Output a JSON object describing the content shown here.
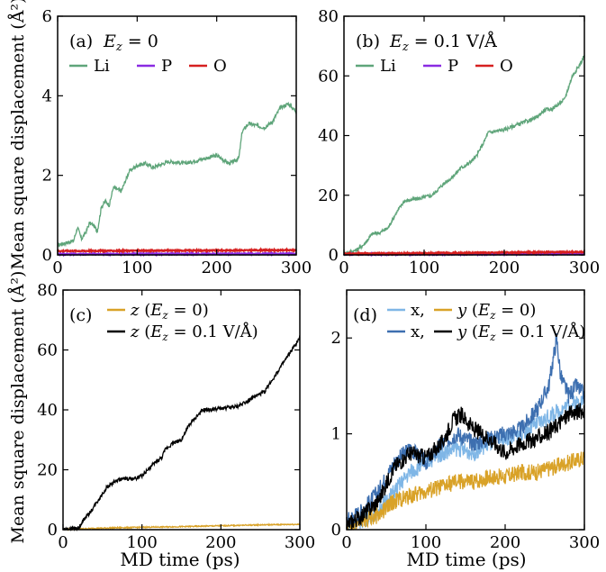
{
  "figure": {
    "ylabel_top": "Mean square displacement (Å²)",
    "ylabel_bottom": "Mean square displacement (Å²)",
    "xlabel_left": "MD time (ps)",
    "xlabel_right": "MD time (ps)"
  },
  "colors": {
    "Li": "#5fa57a",
    "P": "#8a2be2",
    "O": "#d62020",
    "z0": "#d9a228",
    "zE": "#000000",
    "x0": "#7fb6e6",
    "xE": "#3d6fb0"
  },
  "chart_data": [
    {
      "panel": "a",
      "type": "line",
      "annotation": "(a)",
      "condition": "E_z = 0",
      "xlim": [
        0,
        300
      ],
      "ylim": [
        0,
        6
      ],
      "xticks": [
        "0",
        "100",
        "200",
        "300"
      ],
      "yticks": [
        "0",
        "2",
        "4",
        "6"
      ],
      "legend": "top-left",
      "series": [
        {
          "name": "Li",
          "color_key": "Li",
          "x": [
            0,
            10,
            20,
            25,
            30,
            35,
            40,
            45,
            50,
            55,
            60,
            65,
            70,
            80,
            90,
            100,
            110,
            120,
            140,
            160,
            180,
            200,
            215,
            222,
            228,
            232,
            240,
            260,
            270,
            280,
            290,
            300
          ],
          "y": [
            0.25,
            0.3,
            0.35,
            0.7,
            0.4,
            0.55,
            0.8,
            0.75,
            0.6,
            1.2,
            1.35,
            1.25,
            1.7,
            1.6,
            2.1,
            2.25,
            2.3,
            2.2,
            2.35,
            2.3,
            2.4,
            2.5,
            2.3,
            2.35,
            2.45,
            3.1,
            3.3,
            3.2,
            3.35,
            3.7,
            3.8,
            3.6
          ]
        },
        {
          "name": "P",
          "color_key": "P",
          "x": [
            0,
            300
          ],
          "y": [
            0.02,
            0.03
          ]
        },
        {
          "name": "O",
          "color_key": "O",
          "x": [
            0,
            300
          ],
          "y": [
            0.1,
            0.12
          ]
        }
      ]
    },
    {
      "panel": "b",
      "type": "line",
      "annotation": "(b)",
      "condition": "E_z = 0.1 V/Å",
      "xlim": [
        0,
        300
      ],
      "ylim": [
        0,
        80
      ],
      "xticks": [
        "0",
        "100",
        "200",
        "300"
      ],
      "yticks": [
        "0",
        "20",
        "40",
        "60",
        "80"
      ],
      "legend": "top-left",
      "series": [
        {
          "name": "Li",
          "color_key": "Li",
          "x": [
            0,
            15,
            25,
            35,
            45,
            55,
            65,
            75,
            85,
            95,
            110,
            125,
            135,
            145,
            155,
            165,
            175,
            180,
            200,
            220,
            240,
            250,
            260,
            275,
            285,
            295,
            300
          ],
          "y": [
            0.5,
            1.5,
            3.5,
            7,
            7.5,
            9,
            14,
            18,
            18.5,
            19,
            20,
            24,
            26,
            29,
            30.5,
            33,
            38,
            41,
            42,
            44,
            46,
            48.5,
            49,
            52,
            60,
            64,
            67
          ]
        },
        {
          "name": "P",
          "color_key": "P",
          "x": [
            0,
            300
          ],
          "y": [
            0.2,
            0.4
          ]
        },
        {
          "name": "O",
          "color_key": "O",
          "x": [
            0,
            300
          ],
          "y": [
            0.4,
            1.0
          ]
        }
      ]
    },
    {
      "panel": "c",
      "type": "line",
      "annotation": "(c)",
      "xlim": [
        0,
        300
      ],
      "ylim": [
        0,
        80
      ],
      "xticks": [
        "0",
        "100",
        "200",
        "300"
      ],
      "yticks": [
        "0",
        "20",
        "40",
        "60",
        "80"
      ],
      "xlabel": "MD time (ps)",
      "legend": "top-left",
      "series": [
        {
          "name": "z (E_z = 0)",
          "color_key": "z0",
          "x": [
            0,
            50,
            100,
            150,
            200,
            250,
            300
          ],
          "y": [
            0.1,
            0.5,
            0.8,
            1.0,
            1.3,
            1.6,
            1.8
          ]
        },
        {
          "name": "z (E_z = 0.1 V/Å)",
          "color_key": "zE",
          "x": [
            0,
            20,
            25,
            35,
            45,
            55,
            65,
            75,
            90,
            100,
            115,
            125,
            130,
            140,
            150,
            160,
            170,
            178,
            185,
            200,
            220,
            240,
            255,
            260,
            270,
            280,
            290,
            300
          ],
          "y": [
            0,
            0.5,
            3,
            6,
            10,
            14,
            16,
            17,
            17,
            18,
            22,
            24,
            27,
            29,
            30,
            35,
            38,
            40,
            40,
            40.5,
            41,
            44,
            46,
            48,
            52,
            56,
            60,
            64
          ]
        }
      ]
    },
    {
      "panel": "d",
      "type": "line",
      "annotation": "(d)",
      "xlim": [
        0,
        300
      ],
      "ylim": [
        0,
        2.5
      ],
      "xticks": [
        "0",
        "100",
        "200",
        "300"
      ],
      "yticks": [
        "0",
        "1",
        "2"
      ],
      "xlabel": "MD time (ps)",
      "legend": "top-left",
      "legend_entries": [
        "x, y (E_z = 0)",
        "x, y (E_z = 0.1 V/Å)"
      ],
      "series": [
        {
          "name": "x (E_z = 0)",
          "color_key": "x0",
          "x": [
            0,
            20,
            40,
            60,
            80,
            100,
            120,
            140,
            160,
            180,
            200,
            220,
            240,
            260,
            280,
            300
          ],
          "y": [
            0.05,
            0.1,
            0.2,
            0.4,
            0.6,
            0.7,
            0.8,
            0.85,
            0.8,
            0.9,
            0.95,
            1.0,
            1.1,
            1.2,
            1.3,
            1.35
          ]
        },
        {
          "name": "y (E_z = 0)",
          "color_key": "z0",
          "x": [
            0,
            20,
            40,
            60,
            80,
            100,
            120,
            140,
            160,
            180,
            200,
            220,
            240,
            260,
            280,
            300
          ],
          "y": [
            0.05,
            0.1,
            0.15,
            0.3,
            0.35,
            0.4,
            0.45,
            0.5,
            0.5,
            0.55,
            0.55,
            0.6,
            0.6,
            0.65,
            0.7,
            0.75
          ]
        },
        {
          "name": "x (E_z = 0.1 V/Å)",
          "color_key": "xE",
          "x": [
            0,
            20,
            40,
            60,
            80,
            100,
            120,
            140,
            160,
            180,
            200,
            220,
            240,
            255,
            265,
            270,
            280,
            290,
            300
          ],
          "y": [
            0.1,
            0.2,
            0.4,
            0.7,
            0.85,
            0.7,
            0.9,
            1.0,
            0.9,
            0.95,
            1.0,
            1.05,
            1.25,
            1.5,
            2.0,
            1.6,
            1.4,
            1.5,
            1.4
          ]
        },
        {
          "name": "y (E_z = 0.1 V/Å)",
          "color_key": "zE",
          "x": [
            0,
            20,
            40,
            60,
            80,
            100,
            120,
            135,
            145,
            160,
            180,
            200,
            220,
            240,
            260,
            280,
            300
          ],
          "y": [
            0.05,
            0.15,
            0.3,
            0.65,
            0.8,
            0.75,
            0.9,
            1.15,
            1.2,
            1.05,
            0.95,
            0.8,
            0.9,
            0.95,
            1.05,
            1.2,
            1.25
          ]
        }
      ]
    }
  ]
}
